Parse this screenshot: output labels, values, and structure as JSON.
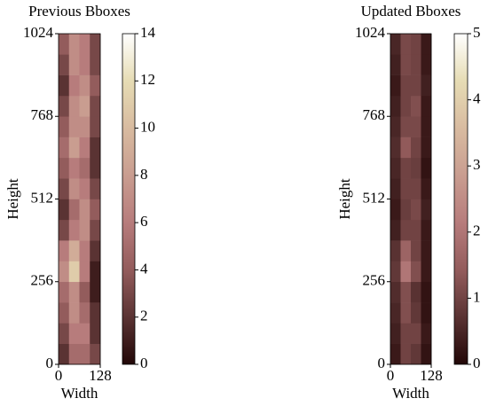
{
  "chart_data": [
    {
      "type": "heatmap",
      "title": "Previous Bboxes",
      "x_label": "Width",
      "y_label": "Height",
      "xlim": [
        0,
        128
      ],
      "ylim": [
        0,
        1024
      ],
      "xticks": [
        0,
        128
      ],
      "yticks": [
        0,
        256,
        512,
        768,
        1024
      ],
      "clim": [
        0,
        14
      ],
      "cticks": [
        0,
        2,
        4,
        6,
        8,
        10,
        12,
        14
      ],
      "colormap": [
        "#220707",
        "#5a3333",
        "#935c5c",
        "#b77c7c",
        "#c99d90",
        "#d8bba0",
        "#e6dcb4",
        "#ffffff"
      ],
      "z": [
        [
          2,
          5,
          5,
          3
        ],
        [
          3,
          6,
          6,
          2
        ],
        [
          4,
          7,
          5,
          2
        ],
        [
          5,
          7,
          4,
          1
        ],
        [
          7,
          11,
          6,
          1
        ],
        [
          6,
          9,
          6,
          2
        ],
        [
          3,
          6,
          7,
          3
        ],
        [
          2,
          5,
          7,
          4
        ],
        [
          3,
          7,
          6,
          3
        ],
        [
          4,
          6,
          5,
          2
        ],
        [
          5,
          8,
          6,
          2
        ],
        [
          4,
          7,
          7,
          3
        ],
        [
          3,
          7,
          8,
          3
        ],
        [
          2,
          6,
          7,
          4
        ],
        [
          3,
          7,
          6,
          3
        ],
        [
          4,
          7,
          6,
          3
        ]
      ]
    },
    {
      "type": "heatmap",
      "title": "Updated Bboxes",
      "x_label": "Width",
      "y_label": "Height",
      "xlim": [
        0,
        128
      ],
      "ylim": [
        0,
        1024
      ],
      "xticks": [
        0,
        128
      ],
      "yticks": [
        0,
        256,
        512,
        768,
        1024
      ],
      "clim": [
        0,
        5
      ],
      "cticks": [
        0,
        1,
        2,
        3,
        4,
        5
      ],
      "colormap": [
        "#220707",
        "#5a3333",
        "#935c5c",
        "#b77c7c",
        "#c99d90",
        "#d8bba0",
        "#e6dcb4",
        "#ffffff"
      ],
      "z": [
        [
          0.3,
          1,
          0.8,
          0.2
        ],
        [
          0.4,
          1,
          1,
          0.3
        ],
        [
          0.5,
          1.2,
          0.8,
          0.2
        ],
        [
          0.6,
          1.2,
          0.7,
          0.2
        ],
        [
          0.8,
          2,
          1.2,
          0.3
        ],
        [
          0.7,
          1.6,
          1,
          0.3
        ],
        [
          0.4,
          1,
          1,
          0.3
        ],
        [
          0.3,
          0.9,
          1.1,
          0.4
        ],
        [
          0.4,
          1,
          1,
          0.3
        ],
        [
          0.5,
          1,
          0.9,
          0.2
        ],
        [
          0.6,
          1.4,
          1,
          0.3
        ],
        [
          0.5,
          1.1,
          1.1,
          0.3
        ],
        [
          0.4,
          1,
          1.2,
          0.3
        ],
        [
          0.3,
          1,
          1,
          0.4
        ],
        [
          0.4,
          1.1,
          1,
          0.3
        ],
        [
          0.5,
          1.1,
          1,
          0.3
        ]
      ]
    }
  ]
}
